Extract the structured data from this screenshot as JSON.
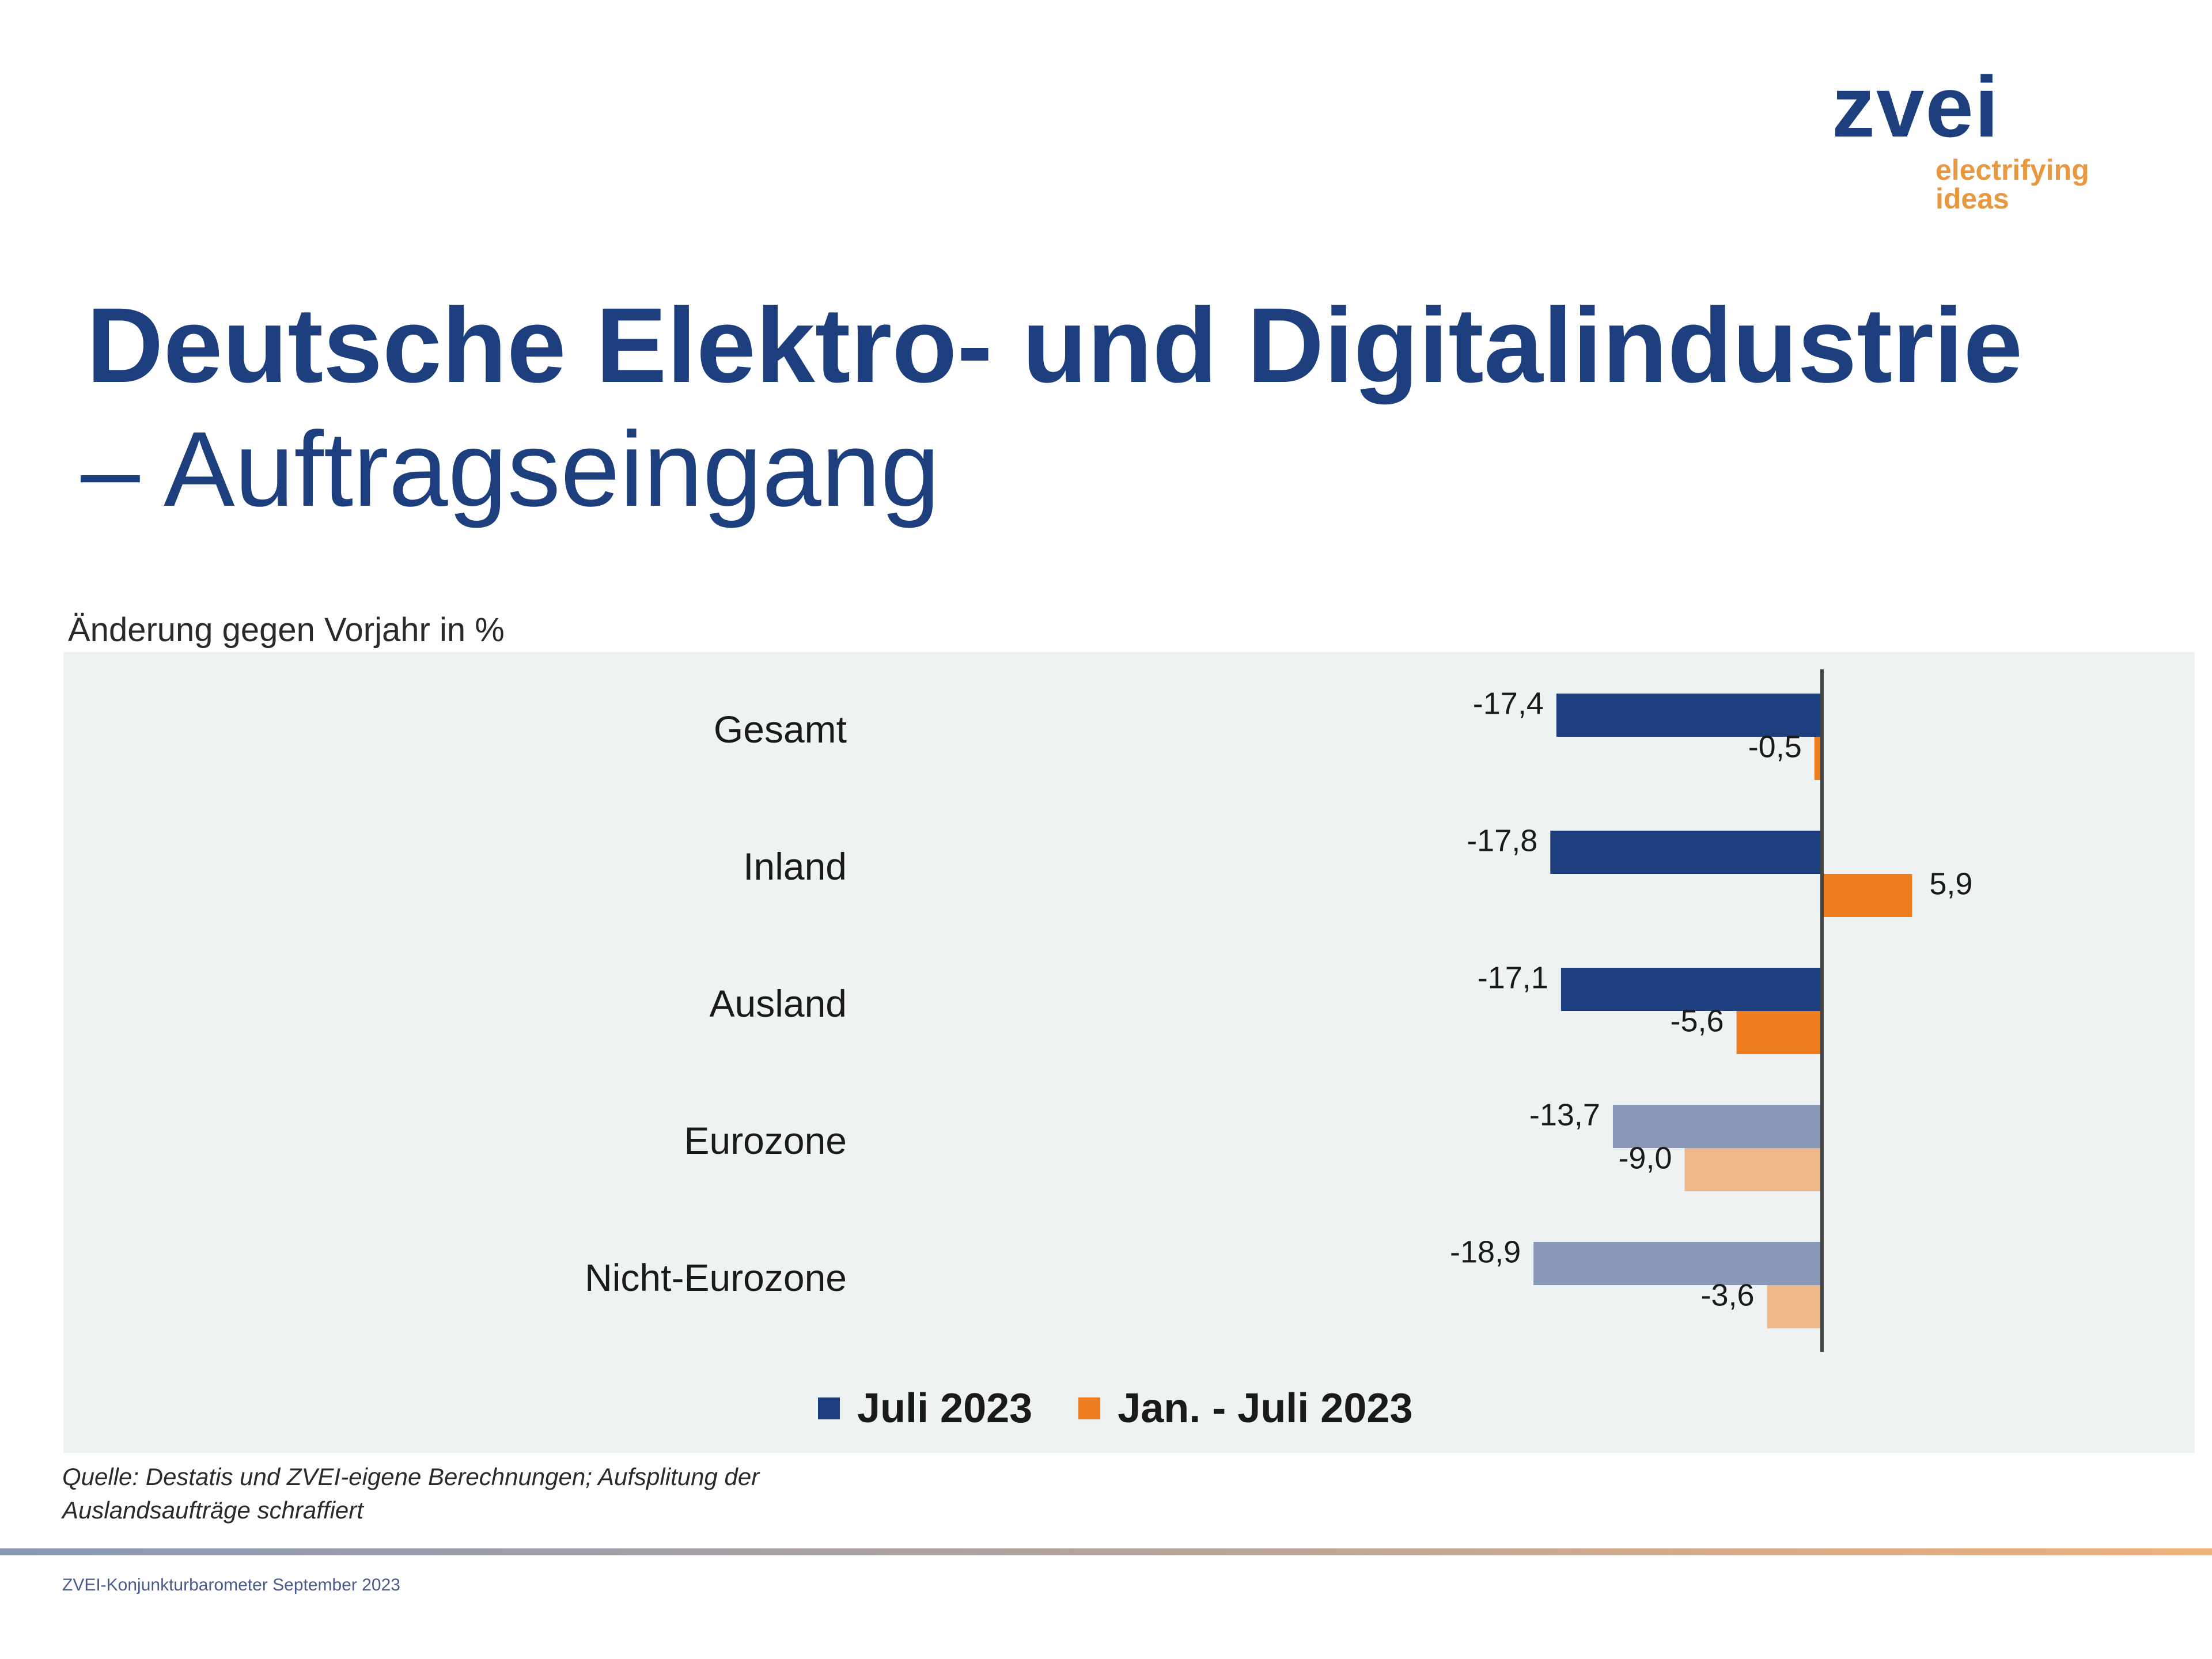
{
  "logo": {
    "word": "zvei",
    "tagline_1": "electrifying",
    "tagline_2": "ideas"
  },
  "header": {
    "title": "Deutsche Elektro- und Digitalindustrie",
    "subtitle": "– Auftragseingang"
  },
  "colors": {
    "juli": "#1d3f7d",
    "jan_juli": "#ee7d1d",
    "juli_light": "#8898b6",
    "jan_juli_light": "#eeb88a",
    "axis": "#444444"
  },
  "chart_data": {
    "type": "bar",
    "orientation": "horizontal",
    "title": "Deutsche Elektro- und Digitalindustrie – Auftragseingang",
    "unit_label": "Änderung gegen Vorjahr in %",
    "categories": [
      "Gesamt",
      "Inland",
      "Ausland",
      "Eurozone",
      "Nicht-Eurozone"
    ],
    "series": [
      {
        "name": "Juli 2023",
        "values": [
          -17.4,
          -17.8,
          -17.1,
          -13.7,
          -18.9
        ],
        "labels": [
          "-17,4",
          "-17,8",
          "-17,1",
          "-13,7",
          "-18,9"
        ]
      },
      {
        "name": "Jan. - Juli 2023",
        "values": [
          -0.5,
          5.9,
          -5.6,
          -9.0,
          -3.6
        ],
        "labels": [
          "-0,5",
          "5,9",
          "-5,6",
          "-9,0",
          "-3,6"
        ]
      }
    ],
    "hatched_categories": [
      "Eurozone",
      "Nicht-Eurozone"
    ],
    "xlim": [
      -20,
      8
    ],
    "legend_position": "bottom"
  },
  "legend": {
    "juli": "Juli 2023",
    "jan_juli": "Jan. - Juli 2023"
  },
  "source": {
    "line1": "Quelle: Destatis und ZVEI-eigene Berechnungen; Aufsplitung der",
    "line2": "Auslandsaufträge schraffiert"
  },
  "footer": "ZVEI-Konjunkturbarometer September 2023"
}
